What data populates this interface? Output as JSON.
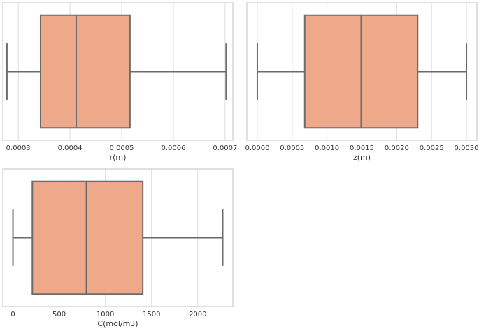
{
  "chart_data": [
    {
      "type": "box",
      "orientation": "horizontal",
      "xlabel": "r(m)",
      "xlim": [
        0.00027,
        0.000715
      ],
      "ticks": [
        0.0003,
        0.0004,
        0.0005,
        0.0006,
        0.0007
      ],
      "tick_labels": [
        "0.0003",
        "0.0004",
        "0.0005",
        "0.0006",
        "0.0007"
      ],
      "box": {
        "whisker_low": 0.000278,
        "q1": 0.000343,
        "median": 0.000412,
        "q3": 0.000516,
        "whisker_high": 0.000702
      },
      "grid": true,
      "colors": {
        "box_fill": "#eea98b",
        "lines": "#6b6b6b",
        "grid": "#dddddd",
        "frame": "#cccccc"
      }
    },
    {
      "type": "box",
      "orientation": "horizontal",
      "xlabel": "z(m)",
      "xlim": [
        -0.00015,
        0.00315
      ],
      "ticks": [
        0.0,
        0.0005,
        0.001,
        0.0015,
        0.002,
        0.0025,
        0.003
      ],
      "tick_labels": [
        "0.0000",
        "0.0005",
        "0.0010",
        "0.0015",
        "0.0020",
        "0.0025",
        "0.0030"
      ],
      "box": {
        "whisker_low": 0.0,
        "q1": 0.00068,
        "median": 0.00149,
        "q3": 0.0023,
        "whisker_high": 0.003
      },
      "grid": true,
      "colors": {
        "box_fill": "#eea98b",
        "lines": "#6b6b6b",
        "grid": "#dddddd",
        "frame": "#cccccc"
      }
    },
    {
      "type": "box",
      "orientation": "horizontal",
      "xlabel": "C(mol/m3)",
      "xlim": [
        -110,
        2380
      ],
      "ticks": [
        0,
        500,
        1000,
        1500,
        2000
      ],
      "tick_labels": [
        "0",
        "500",
        "1000",
        "1500",
        "2000"
      ],
      "box": {
        "whisker_low": 0,
        "q1": 210,
        "median": 795,
        "q3": 1405,
        "whisker_high": 2270
      },
      "grid": true,
      "colors": {
        "box_fill": "#eea98b",
        "lines": "#6b6b6b",
        "grid": "#dddddd",
        "frame": "#cccccc"
      }
    }
  ]
}
